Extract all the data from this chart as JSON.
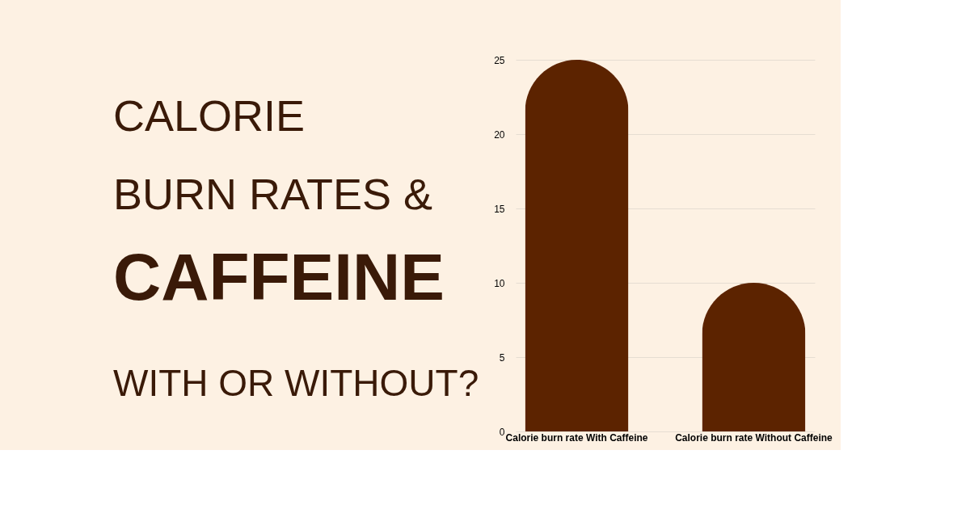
{
  "chart_data": {
    "type": "bar",
    "title": "CALORIE\nBURN RATES &\nCAFFEINE",
    "subtitle": "WITH OR WITHOUT?",
    "categories": [
      "Calorie burn rate With Caffeine",
      "Calorie burn rate Without Caffeine"
    ],
    "values": [
      25,
      10
    ],
    "color": "#5c2300",
    "ylim": [
      0,
      25
    ],
    "yticks": [
      0,
      5,
      10,
      15,
      20,
      25
    ],
    "grid": "y"
  }
}
